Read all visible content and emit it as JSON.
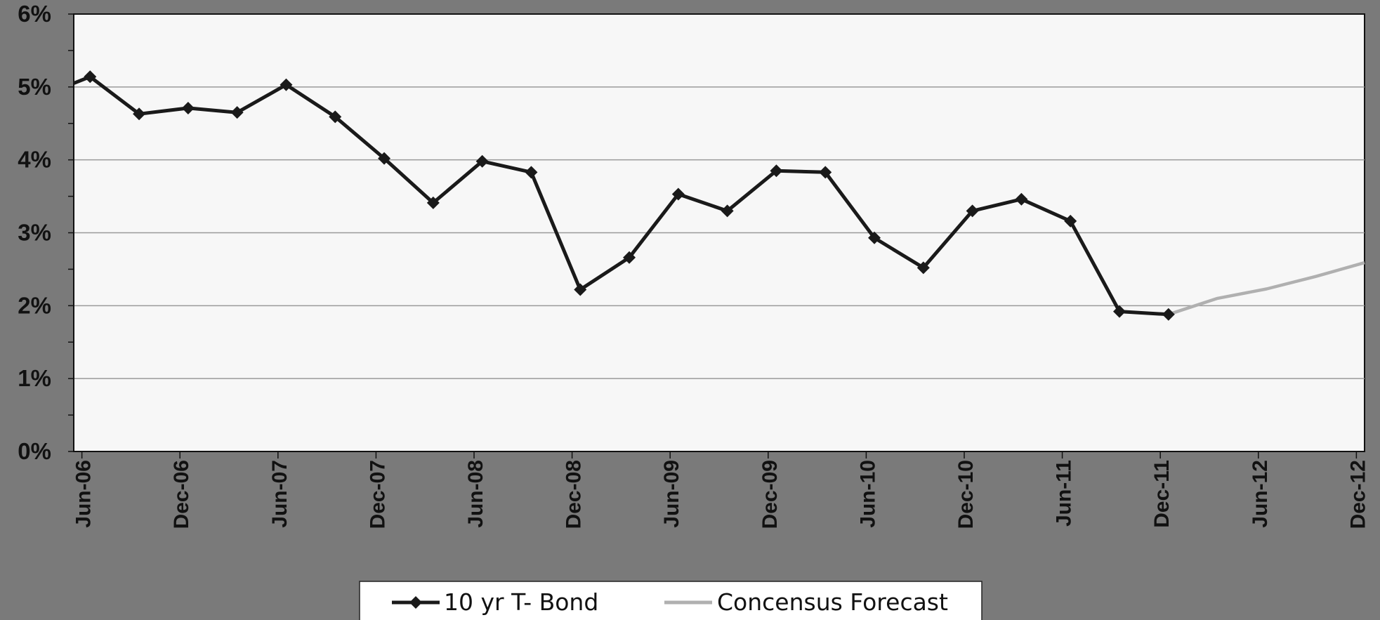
{
  "chart_data": {
    "type": "line",
    "title": "",
    "xlabel": "",
    "ylabel": "",
    "y_ticks": [
      "0%",
      "1%",
      "2%",
      "3%",
      "4%",
      "5%",
      "6%"
    ],
    "ylim": [
      0,
      6
    ],
    "x_ticks": [
      "Jun-06",
      "Dec-06",
      "Jun-07",
      "Dec-07",
      "Jun-08",
      "Dec-08",
      "Jun-09",
      "Dec-09",
      "Jun-10",
      "Dec-10",
      "Jun-11",
      "Dec-11",
      "Jun-12",
      "Dec-12"
    ],
    "x_months": [
      0,
      6,
      12,
      18,
      24,
      30,
      36,
      42,
      48,
      54,
      60,
      66,
      72,
      78
    ],
    "grid": true,
    "legend_position": "bottom",
    "series": [
      {
        "name": "10 yr T- Bond",
        "color": "#1a1a1a",
        "marker": "diamond",
        "x_months": [
          -0.5,
          0.5,
          3.5,
          6.5,
          9.5,
          12.5,
          15.5,
          18.5,
          21.5,
          24.5,
          27.5,
          30.5,
          33.5,
          36.5,
          39.5,
          42.5,
          45.5,
          48.5,
          51.5,
          54.5,
          57.5,
          60.5,
          63.5,
          66.5
        ],
        "values": [
          5.05,
          5.14,
          4.63,
          4.71,
          4.65,
          5.03,
          4.59,
          4.02,
          3.41,
          3.98,
          3.83,
          2.22,
          2.66,
          3.53,
          3.3,
          3.85,
          3.83,
          2.93,
          2.52,
          3.3,
          3.46,
          3.16,
          1.92,
          1.88
        ]
      },
      {
        "name": "Concensus Forecast",
        "color": "#b0b0b0",
        "marker": "none",
        "x_months": [
          66.5,
          69.5,
          72.5,
          75.5,
          78.5
        ],
        "values": [
          1.88,
          2.1,
          2.23,
          2.4,
          2.59
        ]
      }
    ]
  }
}
